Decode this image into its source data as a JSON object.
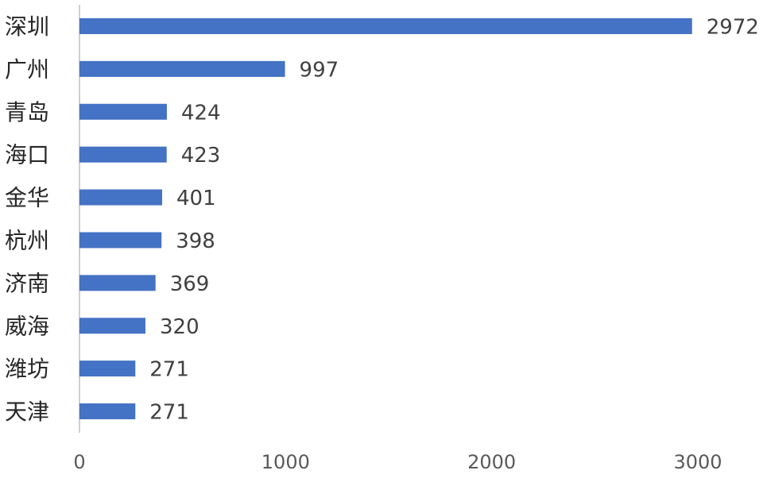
{
  "chart_data": {
    "type": "bar",
    "categories": [
      "深圳",
      "广州",
      "青岛",
      "海口",
      "金华",
      "杭州",
      "济南",
      "威海",
      "潍坊",
      "天津"
    ],
    "values": [
      2972,
      997,
      424,
      423,
      401,
      398,
      369,
      320,
      271,
      271
    ],
    "color": "#4472c4",
    "xlim": [
      0,
      3000
    ],
    "xticks": [
      0,
      1000,
      2000,
      3000
    ]
  }
}
